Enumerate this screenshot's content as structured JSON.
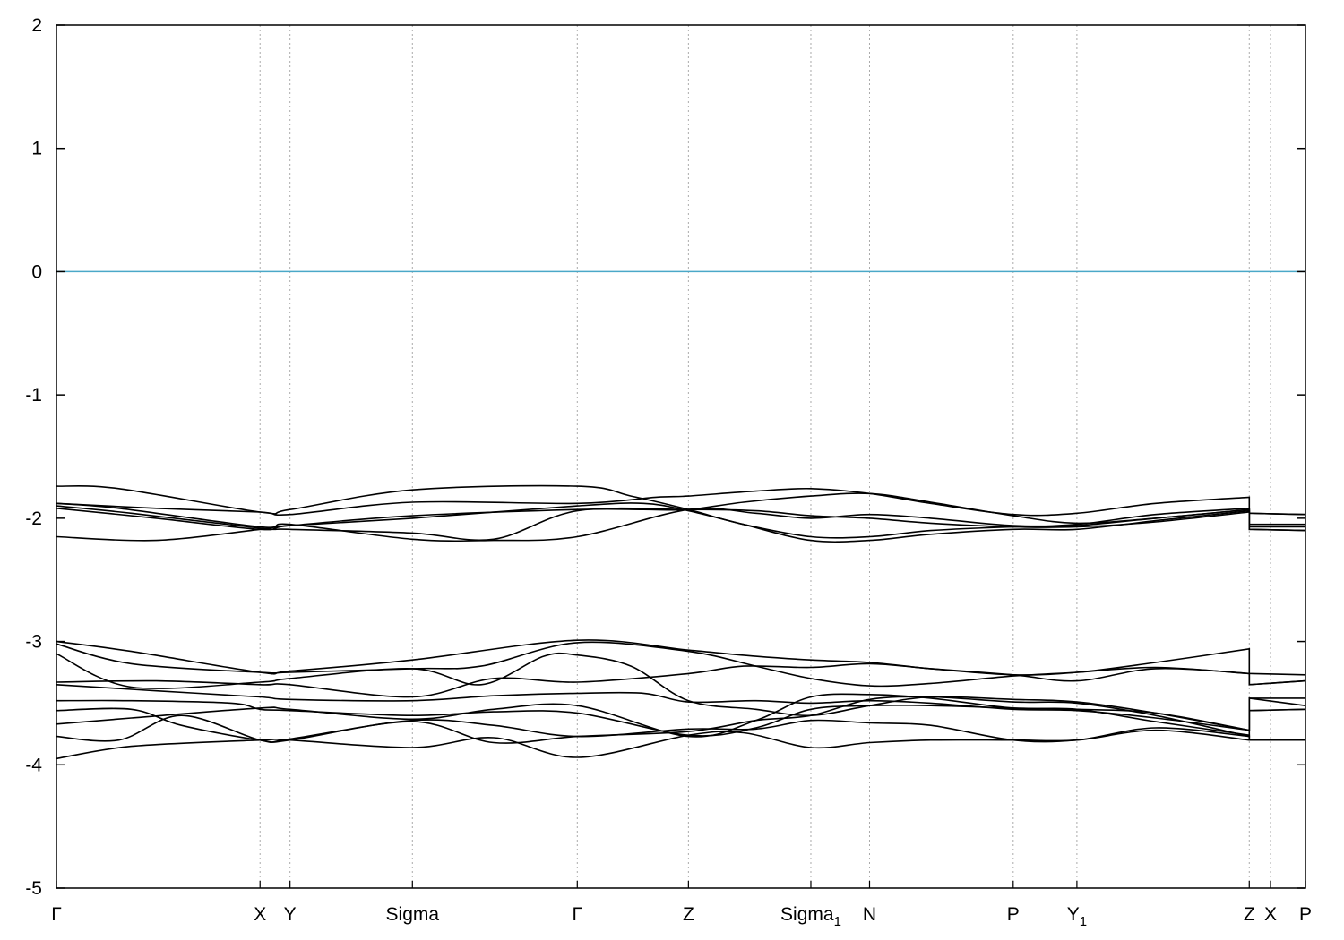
{
  "chart_data": {
    "type": "line",
    "title": "",
    "xlabel": "",
    "ylabel": "",
    "ylim": [
      -5,
      2
    ],
    "yticks": [
      2,
      1,
      0,
      -1,
      -2,
      -3,
      -4,
      -5
    ],
    "fermi_level": 0,
    "grid": "vertical-dotted-at-kpoints",
    "colors": {
      "bands": "#000000",
      "fermi": "#4aa8c8",
      "grid": "#aaaaaa"
    },
    "kpoints": [
      {
        "label": "Γ",
        "sub": "",
        "x": 0.0
      },
      {
        "label": "X",
        "sub": "",
        "x": 0.163
      },
      {
        "label": "Y",
        "sub": "",
        "x": 0.187
      },
      {
        "label": "Sigma",
        "sub": "",
        "x": 0.285
      },
      {
        "label": "Γ",
        "sub": "",
        "x": 0.417
      },
      {
        "label": "Z",
        "sub": "",
        "x": 0.506
      },
      {
        "label": "Sigma",
        "sub": "1",
        "x": 0.604
      },
      {
        "label": "N",
        "sub": "",
        "x": 0.651
      },
      {
        "label": "P",
        "sub": "",
        "x": 0.766
      },
      {
        "label": "Y",
        "sub": "1",
        "x": 0.817
      },
      {
        "label": "Z",
        "sub": "",
        "x": 0.955
      },
      {
        "label": "X",
        "sub": "",
        "x": 0.972
      },
      {
        "label": "P",
        "sub": "",
        "x": 1.0
      }
    ],
    "bands": [
      {
        "x": [
          0,
          0.05,
          0.163,
          0.187,
          0.285,
          0.417,
          0.46,
          0.506,
          0.55,
          0.604,
          0.651,
          0.7,
          0.766,
          0.817,
          0.88,
          0.955,
          0.955,
          1.0
        ],
        "y": [
          -1.74,
          -1.76,
          -1.95,
          -1.93,
          -1.77,
          -1.74,
          -1.82,
          -1.93,
          -2.05,
          -2.15,
          -2.15,
          -2.1,
          -2.07,
          -2.06,
          -2.0,
          -1.93,
          -1.96,
          -1.97
        ]
      },
      {
        "x": [
          0,
          0.08,
          0.163,
          0.187,
          0.285,
          0.417,
          0.48,
          0.506,
          0.56,
          0.604,
          0.651,
          0.7,
          0.766,
          0.817,
          0.88,
          0.955,
          0.955,
          1.0
        ],
        "y": [
          -1.88,
          -1.92,
          -1.95,
          -1.97,
          -1.87,
          -1.88,
          -1.83,
          -1.82,
          -1.78,
          -1.76,
          -1.8,
          -1.88,
          -1.97,
          -1.96,
          -1.88,
          -1.83,
          -1.96,
          -1.97
        ]
      },
      {
        "x": [
          0,
          0.06,
          0.163,
          0.187,
          0.285,
          0.35,
          0.417,
          0.506,
          0.56,
          0.604,
          0.651,
          0.7,
          0.766,
          0.817,
          0.88,
          0.955,
          0.955,
          1.0
        ],
        "y": [
          -1.9,
          -1.96,
          -2.08,
          -2.09,
          -2.12,
          -2.17,
          -1.94,
          -1.93,
          -1.94,
          -1.98,
          -2.0,
          -2.04,
          -2.07,
          -2.07,
          -2.03,
          -1.95,
          -2.07,
          -2.07
        ]
      },
      {
        "x": [
          0,
          0.08,
          0.163,
          0.187,
          0.285,
          0.417,
          0.47,
          0.506,
          0.55,
          0.604,
          0.651,
          0.7,
          0.766,
          0.817,
          0.88,
          0.955,
          0.955,
          1.0
        ],
        "y": [
          -1.92,
          -2.0,
          -2.09,
          -2.06,
          -1.98,
          -1.93,
          -1.93,
          -1.93,
          -1.87,
          -1.82,
          -1.8,
          -1.87,
          -1.98,
          -2.04,
          -2.0,
          -1.93,
          -2.09,
          -2.1
        ]
      },
      {
        "x": [
          0,
          0.08,
          0.163,
          0.187,
          0.285,
          0.417,
          0.47,
          0.506,
          0.55,
          0.604,
          0.651,
          0.7,
          0.766,
          0.817,
          0.88,
          0.955,
          0.955,
          1.0
        ],
        "y": [
          -2.15,
          -2.18,
          -2.09,
          -2.06,
          -2.0,
          -1.9,
          -1.88,
          -1.94,
          -2.05,
          -2.18,
          -2.18,
          -2.13,
          -2.09,
          -2.09,
          -2.02,
          -1.94,
          -2.09,
          -2.1
        ]
      },
      {
        "x": [
          0,
          0.05,
          0.163,
          0.187,
          0.285,
          0.35,
          0.417,
          0.506,
          0.56,
          0.604,
          0.651,
          0.7,
          0.766,
          0.817,
          0.88,
          0.955,
          0.955,
          1.0
        ],
        "y": [
          -1.88,
          -1.92,
          -2.07,
          -2.05,
          -2.17,
          -2.18,
          -2.15,
          -1.93,
          -1.96,
          -2.0,
          -1.97,
          -2.0,
          -2.06,
          -2.05,
          -1.97,
          -1.92,
          -2.05,
          -2.05
        ]
      },
      {
        "x": [
          0,
          0.06,
          0.163,
          0.187,
          0.285,
          0.417,
          0.506,
          0.56,
          0.604,
          0.651,
          0.7,
          0.766,
          0.817,
          0.88,
          0.955,
          0.955,
          1.0
        ],
        "y": [
          -3.0,
          -3.08,
          -3.25,
          -3.24,
          -3.15,
          -2.99,
          -3.07,
          -3.12,
          -3.15,
          -3.17,
          -3.22,
          -3.27,
          -3.25,
          -3.17,
          -3.06,
          -3.26,
          -3.27
        ]
      },
      {
        "x": [
          0,
          0.06,
          0.163,
          0.187,
          0.285,
          0.34,
          0.417,
          0.506,
          0.56,
          0.604,
          0.651,
          0.7,
          0.766,
          0.817,
          0.88,
          0.955,
          0.955,
          1.0
        ],
        "y": [
          -3.02,
          -3.18,
          -3.25,
          -3.25,
          -3.22,
          -3.2,
          -3.01,
          -3.08,
          -3.2,
          -3.3,
          -3.36,
          -3.34,
          -3.28,
          -3.25,
          -3.21,
          -3.26,
          -3.35,
          -3.32
        ]
      },
      {
        "x": [
          0,
          0.06,
          0.163,
          0.187,
          0.285,
          0.34,
          0.39,
          0.417,
          0.46,
          0.506,
          0.56,
          0.604,
          0.651,
          0.7,
          0.766,
          0.817,
          0.88,
          0.955,
          0.955,
          1.0
        ],
        "y": [
          -3.1,
          -3.37,
          -3.33,
          -3.3,
          -3.22,
          -3.35,
          -3.12,
          -3.11,
          -3.2,
          -3.48,
          -3.55,
          -3.6,
          -3.52,
          -3.45,
          -3.47,
          -3.49,
          -3.58,
          -3.72,
          -3.56,
          -3.55
        ]
      },
      {
        "x": [
          0,
          0.08,
          0.163,
          0.187,
          0.285,
          0.35,
          0.417,
          0.506,
          0.55,
          0.604,
          0.651,
          0.7,
          0.766,
          0.817,
          0.88,
          0.955,
          0.955,
          1.0
        ],
        "y": [
          -3.33,
          -3.32,
          -3.35,
          -3.35,
          -3.45,
          -3.3,
          -3.33,
          -3.26,
          -3.2,
          -3.21,
          -3.18,
          -3.22,
          -3.27,
          -3.32,
          -3.22,
          -3.26,
          -3.35,
          -3.32
        ]
      },
      {
        "x": [
          0,
          0.08,
          0.163,
          0.187,
          0.285,
          0.35,
          0.417,
          0.47,
          0.506,
          0.56,
          0.604,
          0.651,
          0.7,
          0.766,
          0.817,
          0.88,
          0.955,
          0.955,
          1.0
        ],
        "y": [
          -3.35,
          -3.4,
          -3.45,
          -3.47,
          -3.48,
          -3.44,
          -3.42,
          -3.42,
          -3.49,
          -3.48,
          -3.5,
          -3.48,
          -3.5,
          -3.55,
          -3.56,
          -3.62,
          -3.72,
          -3.56,
          -3.55
        ]
      },
      {
        "x": [
          0,
          0.06,
          0.14,
          0.163,
          0.187,
          0.285,
          0.35,
          0.417,
          0.506,
          0.56,
          0.604,
          0.651,
          0.7,
          0.766,
          0.817,
          0.88,
          0.955,
          0.955,
          1.0
        ],
        "y": [
          -3.48,
          -3.48,
          -3.5,
          -3.55,
          -3.56,
          -3.6,
          -3.57,
          -3.58,
          -3.76,
          -3.7,
          -3.55,
          -3.52,
          -3.52,
          -3.54,
          -3.55,
          -3.58,
          -3.72,
          -3.46,
          -3.46
        ]
      },
      {
        "x": [
          0,
          0.06,
          0.1,
          0.163,
          0.187,
          0.285,
          0.35,
          0.417,
          0.506,
          0.56,
          0.604,
          0.651,
          0.7,
          0.766,
          0.817,
          0.88,
          0.955,
          0.955,
          1.0
        ],
        "y": [
          -3.56,
          -3.55,
          -3.68,
          -3.8,
          -3.8,
          -3.65,
          -3.82,
          -3.77,
          -3.73,
          -3.64,
          -3.6,
          -3.47,
          -3.45,
          -3.49,
          -3.5,
          -3.6,
          -3.77,
          -3.46,
          -3.52
        ]
      },
      {
        "x": [
          0,
          0.06,
          0.163,
          0.187,
          0.285,
          0.35,
          0.417,
          0.506,
          0.56,
          0.604,
          0.651,
          0.7,
          0.766,
          0.817,
          0.88,
          0.955,
          0.955,
          1.0
        ],
        "y": [
          -3.67,
          -3.62,
          -3.54,
          -3.55,
          -3.63,
          -3.55,
          -3.52,
          -3.77,
          -3.64,
          -3.45,
          -3.43,
          -3.46,
          -3.54,
          -3.55,
          -3.65,
          -3.76,
          -3.8,
          -3.8
        ]
      },
      {
        "x": [
          0,
          0.05,
          0.1,
          0.163,
          0.187,
          0.285,
          0.35,
          0.417,
          0.506,
          0.56,
          0.604,
          0.651,
          0.7,
          0.766,
          0.817,
          0.88,
          0.955,
          0.955,
          1.0
        ],
        "y": [
          -3.77,
          -3.8,
          -3.6,
          -3.8,
          -3.79,
          -3.64,
          -3.68,
          -3.77,
          -3.71,
          -3.71,
          -3.64,
          -3.66,
          -3.68,
          -3.8,
          -3.8,
          -3.7,
          -3.77,
          -3.8,
          -3.8
        ]
      },
      {
        "x": [
          0,
          0.06,
          0.163,
          0.187,
          0.285,
          0.35,
          0.417,
          0.506,
          0.55,
          0.604,
          0.651,
          0.7,
          0.766,
          0.817,
          0.88,
          0.955,
          0.955,
          1.0
        ],
        "y": [
          -3.95,
          -3.85,
          -3.8,
          -3.8,
          -3.86,
          -3.78,
          -3.94,
          -3.76,
          -3.74,
          -3.86,
          -3.82,
          -3.8,
          -3.8,
          -3.8,
          -3.72,
          -3.8,
          -3.8,
          -3.8
        ]
      }
    ]
  }
}
